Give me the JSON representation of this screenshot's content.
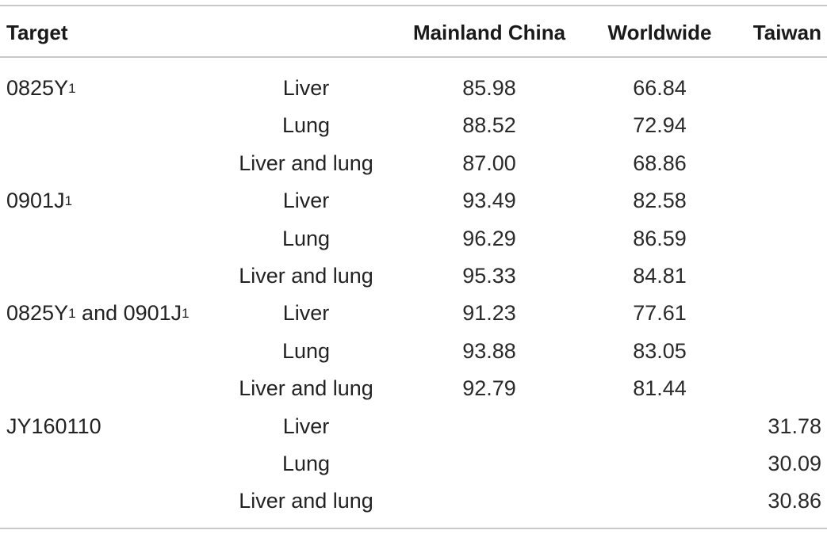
{
  "header": {
    "target": "Target",
    "site": "",
    "mainland": "Mainland China",
    "worldwide": "Worldwide",
    "taiwan": "Taiwan"
  },
  "rows": [
    {
      "target_base": "0825Y",
      "target_sub": "1",
      "target_mid": "",
      "target_sub2": "",
      "site": "Liver",
      "mainland": "85.98",
      "worldwide": "66.84",
      "taiwan": ""
    },
    {
      "target_base": "",
      "target_sub": "",
      "target_mid": "",
      "target_sub2": "",
      "site": "Lung",
      "mainland": "88.52",
      "worldwide": "72.94",
      "taiwan": ""
    },
    {
      "target_base": "",
      "target_sub": "",
      "target_mid": "",
      "target_sub2": "",
      "site": "Liver and lung",
      "mainland": "87.00",
      "worldwide": "68.86",
      "taiwan": ""
    },
    {
      "target_base": "0901J",
      "target_sub": "1",
      "target_mid": "",
      "target_sub2": "",
      "site": "Liver",
      "mainland": "93.49",
      "worldwide": "82.58",
      "taiwan": ""
    },
    {
      "target_base": "",
      "target_sub": "",
      "target_mid": "",
      "target_sub2": "",
      "site": "Lung",
      "mainland": "96.29",
      "worldwide": "86.59",
      "taiwan": ""
    },
    {
      "target_base": "",
      "target_sub": "",
      "target_mid": "",
      "target_sub2": "",
      "site": "Liver and lung",
      "mainland": "95.33",
      "worldwide": "84.81",
      "taiwan": ""
    },
    {
      "target_base": "0825Y",
      "target_sub": "1",
      "target_mid": " and 0901J",
      "target_sub2": "1",
      "site": "Liver",
      "mainland": "91.23",
      "worldwide": "77.61",
      "taiwan": ""
    },
    {
      "target_base": "",
      "target_sub": "",
      "target_mid": "",
      "target_sub2": "",
      "site": "Lung",
      "mainland": "93.88",
      "worldwide": "83.05",
      "taiwan": ""
    },
    {
      "target_base": "",
      "target_sub": "",
      "target_mid": "",
      "target_sub2": "",
      "site": "Liver and lung",
      "mainland": "92.79",
      "worldwide": "81.44",
      "taiwan": ""
    },
    {
      "target_base": "JY160110",
      "target_sub": "",
      "target_mid": "",
      "target_sub2": "",
      "site": "Liver",
      "mainland": "",
      "worldwide": "",
      "taiwan": "31.78"
    },
    {
      "target_base": "",
      "target_sub": "",
      "target_mid": "",
      "target_sub2": "",
      "site": "Lung",
      "mainland": "",
      "worldwide": "",
      "taiwan": "30.09"
    },
    {
      "target_base": "",
      "target_sub": "",
      "target_mid": "",
      "target_sub2": "",
      "site": "Liver and lung",
      "mainland": "",
      "worldwide": "",
      "taiwan": "30.86"
    }
  ]
}
